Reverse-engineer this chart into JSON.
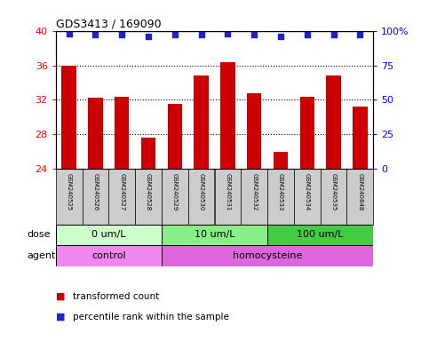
{
  "title": "GDS3413 / 169090",
  "samples": [
    "GSM240525",
    "GSM240526",
    "GSM240527",
    "GSM240528",
    "GSM240529",
    "GSM240530",
    "GSM240531",
    "GSM240532",
    "GSM240533",
    "GSM240534",
    "GSM240535",
    "GSM240848"
  ],
  "bar_values": [
    36.0,
    32.3,
    32.4,
    27.6,
    31.5,
    34.8,
    36.4,
    32.8,
    26.0,
    32.4,
    34.8,
    31.2
  ],
  "percentile_values": [
    98,
    97,
    97,
    96,
    97,
    97,
    98,
    97,
    96,
    97,
    97,
    97
  ],
  "ylim": [
    24,
    40
  ],
  "yticks": [
    24,
    28,
    32,
    36,
    40
  ],
  "right_yticks": [
    0,
    25,
    50,
    75,
    100
  ],
  "right_ylim": [
    0,
    100
  ],
  "bar_color": "#cc0000",
  "dot_color": "#2222cc",
  "dose_groups": [
    {
      "label": "0 um/L",
      "start": 0,
      "end": 4,
      "color": "#ccffcc"
    },
    {
      "label": "10 um/L",
      "start": 4,
      "end": 8,
      "color": "#88ee88"
    },
    {
      "label": "100 um/L",
      "start": 8,
      "end": 12,
      "color": "#44cc44"
    }
  ],
  "agent_groups": [
    {
      "label": "control",
      "start": 0,
      "end": 4,
      "color": "#ee88ee"
    },
    {
      "label": "homocysteine",
      "start": 4,
      "end": 12,
      "color": "#dd66dd"
    }
  ],
  "dose_label": "dose",
  "agent_label": "agent",
  "legend_bar_label": "transformed count",
  "legend_dot_label": "percentile rank within the sample",
  "bg_color": "#ffffff",
  "sample_bg": "#cccccc"
}
